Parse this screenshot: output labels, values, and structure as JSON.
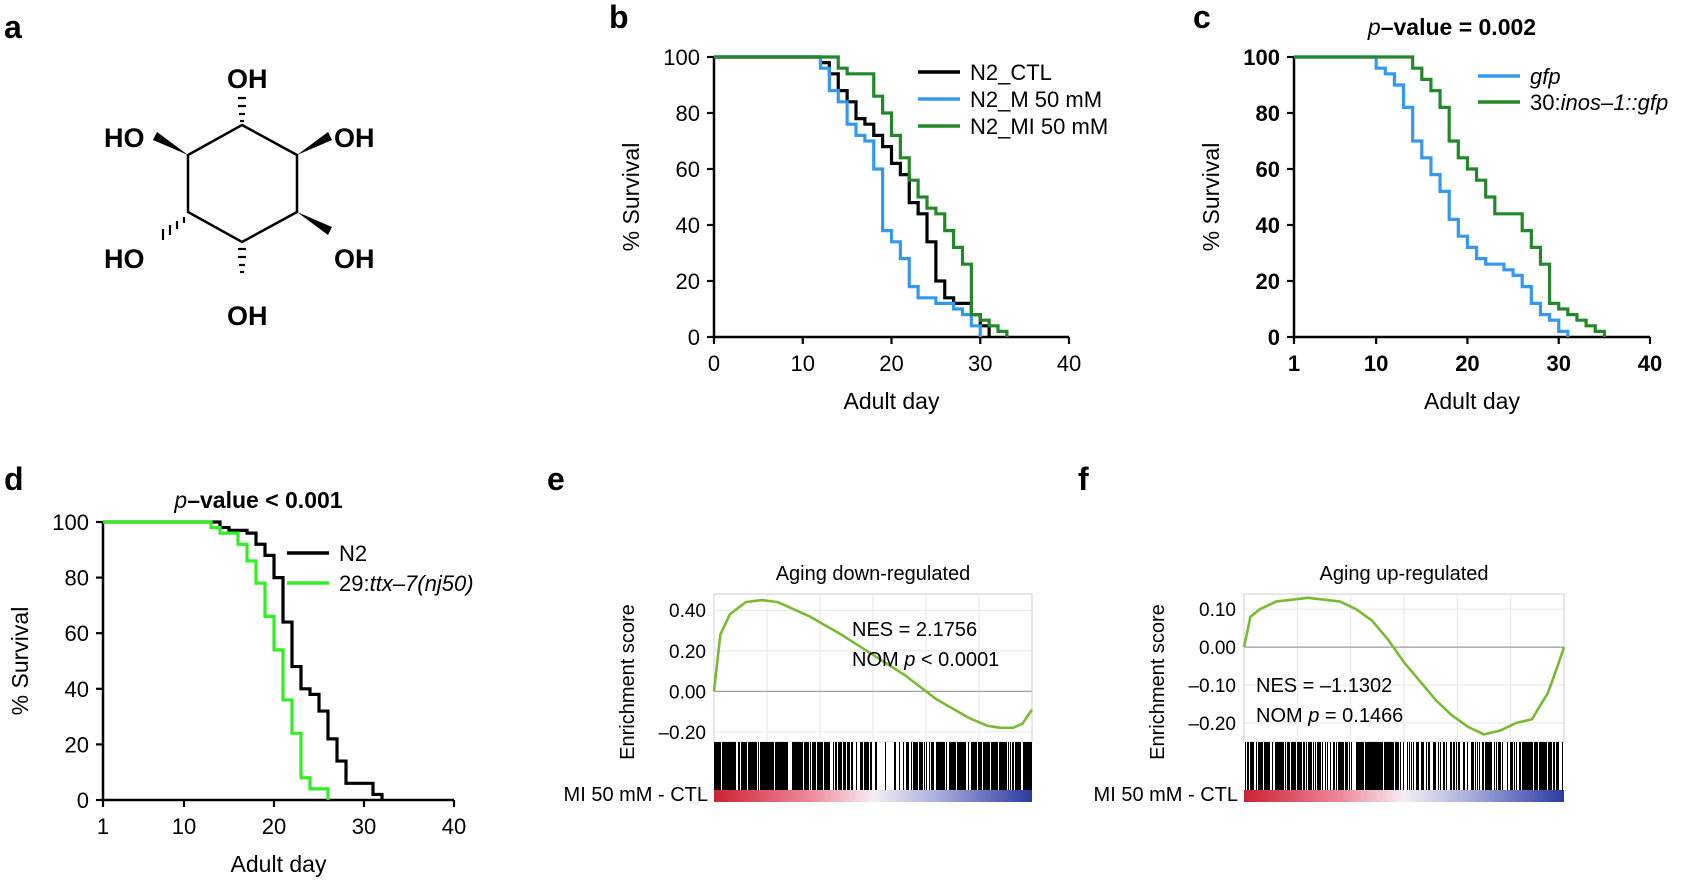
{
  "colors": {
    "black": "#000000",
    "blue": "#3399ee",
    "dark_green": "#22882a",
    "bright_green": "#33ee22",
    "gsea_green": "#77bb33",
    "grid": "#e6e6e6"
  },
  "panel_a": {
    "label": "a",
    "groups": {
      "top": "OH",
      "upper_left": "HO",
      "upper_right": "OH",
      "lower_left": "HO",
      "lower_right": "OH",
      "bottom": "OH"
    }
  },
  "chart_data": [
    {
      "id": "b",
      "type": "line",
      "step": true,
      "label": "b",
      "xlabel": "Adult day",
      "ylabel": "% Survival",
      "xlim": [
        0,
        40
      ],
      "ylim": [
        0,
        100
      ],
      "xticks": [
        "0",
        "10",
        "20",
        "30",
        "40"
      ],
      "yticks": [
        "0",
        "20",
        "40",
        "60",
        "80",
        "100"
      ],
      "series": [
        {
          "name": "N2_CTL",
          "color": "#000000",
          "x": [
            0,
            12,
            13,
            14,
            15,
            16,
            17,
            18,
            19,
            20,
            21,
            22,
            23,
            24,
            25,
            26,
            27,
            28,
            29,
            30,
            31
          ],
          "y": [
            100,
            98,
            94,
            88,
            84,
            78,
            76,
            72,
            68,
            62,
            58,
            48,
            44,
            34,
            20,
            14,
            12,
            12,
            8,
            4,
            0
          ]
        },
        {
          "name": "N2_M 50 mM",
          "color": "#3399ee",
          "x": [
            0,
            12,
            13,
            14,
            15,
            16,
            17,
            18,
            19,
            20,
            21,
            22,
            23,
            25,
            27,
            28,
            29,
            30
          ],
          "y": [
            100,
            96,
            88,
            84,
            76,
            72,
            70,
            60,
            38,
            34,
            28,
            18,
            14,
            12,
            10,
            8,
            4,
            0
          ]
        },
        {
          "name": "N2_MI 50 mM",
          "color": "#22882a",
          "x": [
            0,
            14,
            15,
            18,
            19,
            20,
            21,
            22,
            23,
            24,
            25,
            26,
            27,
            28,
            29,
            30,
            31,
            32,
            33
          ],
          "y": [
            100,
            96,
            94,
            86,
            80,
            72,
            64,
            56,
            50,
            46,
            44,
            38,
            32,
            26,
            8,
            6,
            4,
            2,
            0
          ]
        }
      ]
    },
    {
      "id": "c",
      "type": "line",
      "step": true,
      "label": "c",
      "title_prefix": "p",
      "title_suffix": "–value = 0.002",
      "xlabel": "Adult day",
      "ylabel": "% Survival",
      "xlim": [
        1,
        40
      ],
      "ylim": [
        0,
        100
      ],
      "xticks": [
        "1",
        "10",
        "20",
        "30",
        "40"
      ],
      "yticks": [
        "0",
        "20",
        "40",
        "60",
        "80",
        "100"
      ],
      "series": [
        {
          "name": "gfp",
          "name_prefix": "",
          "name_italic": "gfp",
          "color": "#3399ee",
          "x": [
            1,
            10,
            11,
            12,
            13,
            14,
            15,
            16,
            17,
            18,
            19,
            20,
            21,
            22,
            23,
            24,
            25,
            26,
            27,
            28,
            29,
            30,
            31
          ],
          "y": [
            100,
            96,
            94,
            90,
            82,
            70,
            64,
            58,
            52,
            42,
            36,
            32,
            28,
            26,
            26,
            24,
            22,
            18,
            12,
            8,
            6,
            2,
            0
          ]
        },
        {
          "name": "30:inos–1::gfp",
          "name_prefix": "30:",
          "name_italic": "inos–1::gfp",
          "color": "#22882a",
          "x": [
            1,
            14,
            15,
            16,
            17,
            18,
            19,
            20,
            21,
            22,
            23,
            26,
            27,
            28,
            29,
            30,
            31,
            32,
            33,
            34,
            35
          ],
          "y": [
            100,
            96,
            92,
            88,
            82,
            70,
            64,
            60,
            56,
            50,
            44,
            38,
            32,
            26,
            12,
            10,
            8,
            6,
            4,
            2,
            0
          ]
        }
      ]
    },
    {
      "id": "d",
      "type": "line",
      "step": true,
      "label": "d",
      "title_prefix": "p",
      "title_suffix": "–value < 0.001",
      "xlabel": "Adult day",
      "ylabel": "% Survival",
      "xlim": [
        1,
        40
      ],
      "ylim": [
        0,
        100
      ],
      "xticks": [
        "1",
        "10",
        "20",
        "30",
        "40"
      ],
      "yticks": [
        "0",
        "20",
        "40",
        "60",
        "80",
        "100"
      ],
      "series": [
        {
          "name": "N2",
          "name_prefix": "N2",
          "name_italic": "",
          "color": "#000000",
          "x": [
            1,
            14,
            15,
            17,
            18,
            19,
            20,
            21,
            22,
            23,
            24,
            25,
            26,
            27,
            28,
            31,
            32
          ],
          "y": [
            100,
            98,
            97,
            96,
            92,
            88,
            80,
            64,
            48,
            40,
            38,
            32,
            22,
            14,
            6,
            2,
            0
          ]
        },
        {
          "name": "29:ttx–7(nj50)",
          "name_prefix": "29:",
          "name_italic": "ttx–7(nj50)",
          "color": "#33ee22",
          "x": [
            1,
            13,
            14,
            16,
            17,
            18,
            19,
            20,
            21,
            22,
            23,
            24,
            26
          ],
          "y": [
            100,
            98,
            96,
            92,
            86,
            78,
            66,
            54,
            36,
            24,
            8,
            4,
            0
          ]
        }
      ]
    },
    {
      "id": "e",
      "type": "line",
      "label": "e",
      "title": "Aging down-regulated",
      "ylabel": "Enrichment score",
      "xlabel": "MI 50 mM - CTL",
      "ylim": [
        -0.25,
        0.48
      ],
      "yticks": [
        "0.40",
        "0.20",
        "0.00",
        "–0.20"
      ],
      "ytick_values": [
        0.4,
        0.2,
        0.0,
        -0.2
      ],
      "annotation_nes": "NES = 2.1756",
      "annotation_nom_prefix": "NOM ",
      "annotation_nom_p": "p",
      "annotation_nom_suffix": " < 0.0001",
      "series": [
        {
          "name": "Enrichment score",
          "color": "#77bb33",
          "x": [
            0,
            0.02,
            0.05,
            0.1,
            0.15,
            0.2,
            0.3,
            0.4,
            0.5,
            0.6,
            0.7,
            0.8,
            0.86,
            0.9,
            0.94,
            0.97,
            1.0
          ],
          "y": [
            0.0,
            0.28,
            0.38,
            0.44,
            0.45,
            0.44,
            0.37,
            0.28,
            0.18,
            0.08,
            -0.04,
            -0.13,
            -0.17,
            -0.18,
            -0.18,
            -0.16,
            -0.09
          ]
        }
      ]
    },
    {
      "id": "f",
      "type": "line",
      "label": "f",
      "title": "Aging up-regulated",
      "ylabel": "Enrichment score",
      "xlabel": "MI 50 mM - CTL",
      "ylim": [
        -0.25,
        0.14
      ],
      "yticks": [
        "0.10",
        "0.00",
        "–0.10",
        "–0.20"
      ],
      "ytick_values": [
        0.1,
        0.0,
        -0.1,
        -0.2
      ],
      "annotation_nes": "NES = –1.1302",
      "annotation_nom_prefix": "NOM ",
      "annotation_nom_p": "p",
      "annotation_nom_suffix": " = 0.1466",
      "series": [
        {
          "name": "Enrichment score",
          "color": "#77bb33",
          "x": [
            0,
            0.02,
            0.05,
            0.1,
            0.2,
            0.3,
            0.35,
            0.4,
            0.45,
            0.5,
            0.55,
            0.6,
            0.65,
            0.7,
            0.75,
            0.8,
            0.85,
            0.9,
            0.95,
            0.98,
            1.0
          ],
          "y": [
            0.0,
            0.08,
            0.1,
            0.12,
            0.13,
            0.12,
            0.1,
            0.07,
            0.02,
            -0.04,
            -0.09,
            -0.14,
            -0.18,
            -0.21,
            -0.23,
            -0.22,
            -0.2,
            -0.19,
            -0.12,
            -0.05,
            0.0
          ]
        }
      ]
    }
  ]
}
